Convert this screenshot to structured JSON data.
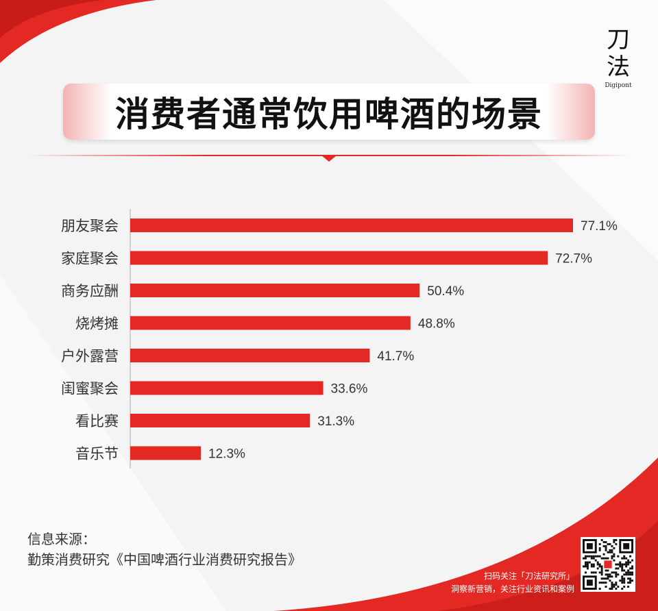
{
  "brand": {
    "name": "刀法",
    "subtitle": "Digipont"
  },
  "title": "消费者通常饮用啤酒的场景",
  "source": {
    "label": "信息来源：",
    "text": "勤策消费研究《中国啤酒行业消费研究报告》"
  },
  "promo": {
    "line1": "扫码关注「刀法研究所」",
    "line2": "洞察新营销，关注行业资讯和案例"
  },
  "colors": {
    "accent": "#e42823",
    "bar": "#e42823",
    "text": "#333333"
  },
  "chart_data": {
    "type": "bar",
    "orientation": "horizontal",
    "categories": [
      "朋友聚会",
      "家庭聚会",
      "商务应酬",
      "烧烤摊",
      "户外露营",
      "闺蜜聚会",
      "看比赛",
      "音乐节"
    ],
    "values": [
      77.1,
      72.7,
      50.4,
      48.8,
      41.7,
      33.6,
      31.3,
      12.3
    ],
    "value_labels": [
      "77.1%",
      "72.7%",
      "50.4%",
      "48.8%",
      "41.7%",
      "33.6%",
      "31.3%",
      "12.3%"
    ],
    "xlim": [
      0,
      100
    ],
    "grid": false,
    "legend": "none"
  }
}
